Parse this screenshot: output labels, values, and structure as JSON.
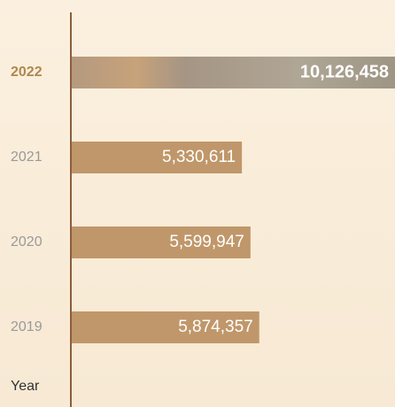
{
  "chart_data": {
    "type": "bar",
    "orientation": "horizontal",
    "y_axis_label": "Year",
    "categories": [
      "2022",
      "2021",
      "2020",
      "2019"
    ],
    "values": [
      10126458,
      5330611,
      5599947,
      5874357
    ],
    "value_labels": [
      "10,126,458",
      "5,330,611",
      "5,599,947",
      "5,874,357"
    ],
    "color": "#c0976a"
  }
}
